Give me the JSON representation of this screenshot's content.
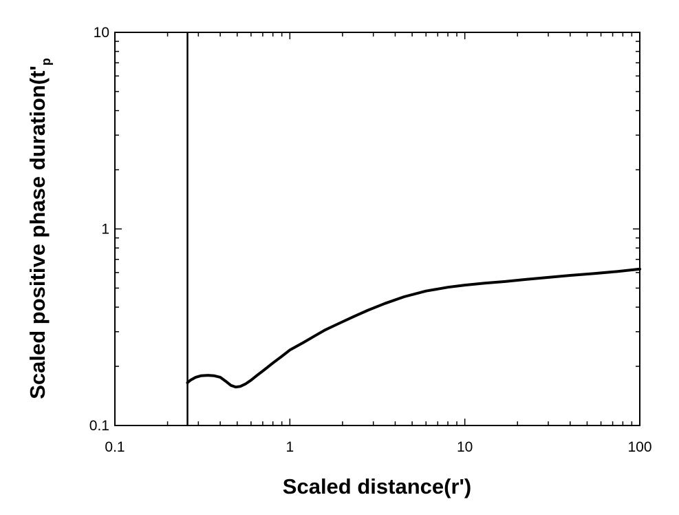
{
  "chart_data": {
    "type": "line",
    "xscale": "log",
    "yscale": "log",
    "xlim": [
      0.1,
      100
    ],
    "ylim": [
      0.1,
      10
    ],
    "grid": false,
    "xlabel": "Scaled distance(r')",
    "ylabel": "Scaled positive phase duration(t'p)",
    "xlabel_main": "Scaled distance",
    "xlabel_paren_open": "(",
    "xlabel_sym": "r'",
    "xlabel_paren_close": ")",
    "ylabel_main": "Scaled positive phase duration",
    "ylabel_paren_open": "(",
    "ylabel_sym": "t'",
    "ylabel_sub": "p",
    "x_ticks": [
      {
        "value": 0.1,
        "label": "0.1"
      },
      {
        "value": 1,
        "label": "1"
      },
      {
        "value": 10,
        "label": "10"
      },
      {
        "value": 100,
        "label": "100"
      }
    ],
    "y_ticks": [
      {
        "value": 0.1,
        "label": "0.1"
      },
      {
        "value": 1,
        "label": "1"
      },
      {
        "value": 10,
        "label": "10"
      }
    ],
    "vertical_line": {
      "x": 0.26
    },
    "series": [
      {
        "color": "#000000",
        "x": [
          0.26,
          0.27,
          0.29,
          0.31,
          0.34,
          0.37,
          0.4,
          0.43,
          0.46,
          0.49,
          0.52,
          0.56,
          0.6,
          0.65,
          0.72,
          0.8,
          0.9,
          1.0,
          1.2,
          1.4,
          1.6,
          1.9,
          2.3,
          2.8,
          3.5,
          4.5,
          6,
          8,
          10,
          13,
          17,
          22,
          30,
          40,
          55,
          75,
          100
        ],
        "y": [
          0.165,
          0.17,
          0.176,
          0.179,
          0.18,
          0.179,
          0.176,
          0.168,
          0.16,
          0.157,
          0.158,
          0.163,
          0.17,
          0.18,
          0.193,
          0.208,
          0.225,
          0.242,
          0.265,
          0.287,
          0.307,
          0.33,
          0.357,
          0.386,
          0.418,
          0.452,
          0.483,
          0.505,
          0.518,
          0.53,
          0.54,
          0.553,
          0.567,
          0.58,
          0.593,
          0.608,
          0.625
        ]
      }
    ]
  }
}
